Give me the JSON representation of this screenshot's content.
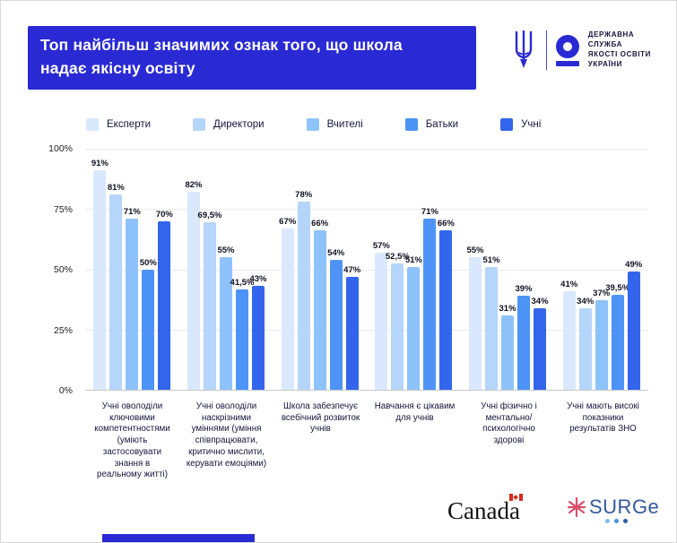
{
  "title": {
    "line1": "Топ найбільш значимих ознак того, що школа",
    "line2": "надає якісну освіту"
  },
  "gov": {
    "name": "ДЕРЖАВНА\nСЛУЖБА\nЯКОСТІ ОСВІТИ\nУКРАЇНИ"
  },
  "colors": {
    "primary": "#2A2AD4",
    "grid": "#ebebeb",
    "axis": "#c9c9c9"
  },
  "chart_data": {
    "type": "bar",
    "title": "Топ найбільш значимих ознак того, що школа надає якісну освіту",
    "legend_position": "top",
    "grid": true,
    "ylim": [
      0,
      100
    ],
    "y_ticks": [
      "100%",
      "75%",
      "50%",
      "25%",
      "0%"
    ],
    "categories": [
      "Учні оволоділи ключовими компетентностями (уміють застосовувати знання в реальному житті)",
      "Учні оволоділи наскрізними уміннями (уміння співпрацювати, критично мислити, керувати емоціями)",
      "Школа забезпечує всебічний розвиток учнів",
      "Навчання є цікавим для учнів",
      "Учні фізично і ментально/психологічно здорові",
      "Учні мають високі показники результатів ЗНО"
    ],
    "series": [
      {
        "name": "Експерти",
        "color": "#D9E8FC",
        "values": [
          91,
          82,
          67,
          57,
          55,
          41
        ],
        "value_labels": [
          "91%",
          "82%",
          "67%",
          "57%",
          "55%",
          "41%"
        ]
      },
      {
        "name": "Директори",
        "color": "#B5D5FA",
        "values": [
          81,
          69.5,
          78,
          52.5,
          51,
          34
        ],
        "value_labels": [
          "81%",
          "69,5%",
          "78%",
          "52,5%",
          "51%",
          "34%"
        ]
      },
      {
        "name": "Вчителі",
        "color": "#8DC3FA",
        "values": [
          71,
          55,
          66,
          51,
          31,
          37
        ],
        "value_labels": [
          "71%",
          "55%",
          "66%",
          "51%",
          "31%",
          "37%"
        ]
      },
      {
        "name": "Батьки",
        "color": "#4D94F6",
        "values": [
          50,
          41.5,
          54,
          71,
          39,
          39.5
        ],
        "value_labels": [
          "50%",
          "41,5%",
          "54%",
          "71%",
          "39%",
          "39,5%"
        ]
      },
      {
        "name": "Учні",
        "color": "#3365EC",
        "values": [
          70,
          43,
          47,
          66,
          34,
          49
        ],
        "value_labels": [
          "70%",
          "43%",
          "47%",
          "66%",
          "34%",
          "49%"
        ]
      }
    ]
  },
  "footer": {
    "canada": "Canada",
    "surge": "SURGe"
  }
}
